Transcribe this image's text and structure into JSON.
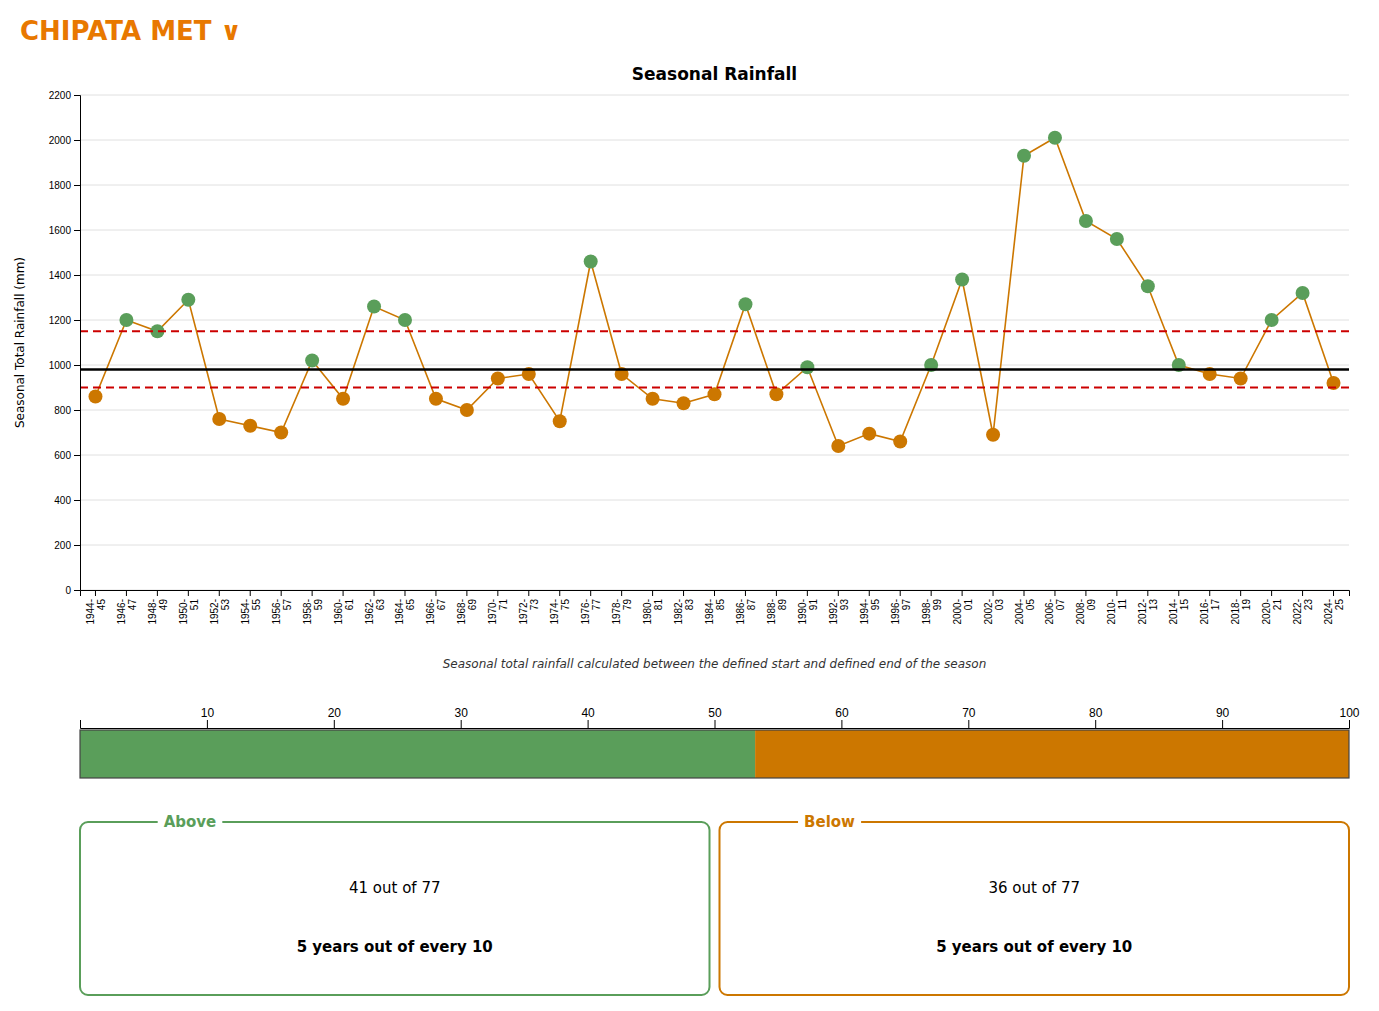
{
  "chart_data": [
    {
      "type": "line",
      "title": "Seasonal Rainfall",
      "subtitle": "Seasonal total rainfall calculated between the defined start and defined end of the season",
      "ylabel": "Seasonal Total Rainfall (mm)",
      "categories": [
        "1944-\n45",
        "1946-\n47",
        "1948-\n49",
        "1950-\n51",
        "1952-\n53",
        "1954-\n55",
        "1956-\n57",
        "1958-\n59",
        "1960-\n61",
        "1962-\n63",
        "1964-\n65",
        "1966-\n67",
        "1968-\n69",
        "1970-\n71",
        "1972-\n73",
        "1974-\n75",
        "1976-\n77",
        "1978-\n79",
        "1980-\n81",
        "1982-\n83",
        "1984-\n85",
        "1986-\n87",
        "1988-\n89",
        "1990-\n91",
        "1992-\n93",
        "1994-\n95",
        "1996-\n97",
        "1998-\n99",
        "2000-\n01",
        "2002-\n03",
        "2004-\n05",
        "2006-\n07",
        "2008-\n09",
        "2010-\n11",
        "2012-\n13",
        "2014-\n15",
        "2016-\n17",
        "2018-\n19",
        "2020-\n21",
        "2022-\n23",
        "2024-\n25"
      ],
      "values": [
        860,
        1200,
        1150,
        1290,
        760,
        730,
        700,
        1020,
        850,
        1260,
        1200,
        850,
        800,
        940,
        960,
        750,
        1460,
        960,
        850,
        830,
        870,
        1270,
        870,
        990,
        640,
        695,
        660,
        1000,
        1380,
        690,
        1930,
        2010,
        1640,
        1560,
        1350,
        1000,
        960,
        940,
        1200,
        1320,
        920
      ],
      "color": "#CC7700",
      "colors": [
        "#CC7700",
        "#5a9e5a",
        "#5a9e5a",
        "#5a9e5a",
        "#CC7700",
        "#CC7700",
        "#CC7700",
        "#5a9e5a",
        "#CC7700",
        "#5a9e5a",
        "#5a9e5a",
        "#CC7700",
        "#CC7700",
        "#CC7700",
        "#CC7700",
        "#CC7700",
        "#5a9e5a",
        "#CC7700",
        "#CC7700",
        "#CC7700",
        "#CC7700",
        "#5a9e5a",
        "#CC7700",
        "#5a9e5a",
        "#CC7700",
        "#CC7700",
        "#CC7700",
        "#5a9e5a",
        "#5a9e5a",
        "#CC7700",
        "#5a9e5a",
        "#5a9e5a",
        "#5a9e5a",
        "#5a9e5a",
        "#5a9e5a",
        "#5a9e5a",
        "#CC7700",
        "#CC7700",
        "#5a9e5a",
        "#5a9e5a",
        "#CC7700"
      ],
      "marker": "circle",
      "ylim": [
        0,
        2200
      ],
      "yticks": [
        0,
        200,
        400,
        600,
        800,
        1000,
        1200,
        1400,
        1600,
        1800,
        2000,
        2200
      ],
      "grid": true,
      "annotations": [
        {
          "type": "header",
          "text": "CHIPATA MET  ∨",
          "color": "#E87800"
        },
        {
          "type": "hline",
          "value": 980,
          "color": "#000000",
          "line_style": "solid"
        },
        {
          "type": "hline",
          "value": 1150,
          "color": "#CC0000",
          "line_style": "dashed"
        },
        {
          "type": "hline",
          "value": 900,
          "color": "#CC0000",
          "line_style": "dashed"
        }
      ]
    },
    {
      "type": "bar",
      "orientation": "horizontal",
      "stacked": true,
      "xlim": [
        0,
        100
      ],
      "xticks": [
        10,
        20,
        30,
        40,
        50,
        60,
        70,
        80,
        90,
        100
      ],
      "series": [
        {
          "name": "Above",
          "color": "#5a9e5a",
          "values": [
            53.2
          ]
        },
        {
          "name": "Below",
          "color": "#CC7700",
          "values": [
            46.8
          ]
        }
      ],
      "annotations": [
        {
          "series": "Above",
          "text": "41 out of 77"
        },
        {
          "series": "Above",
          "text": "5 years out of every 10"
        },
        {
          "series": "Below",
          "text": "36 out of 77"
        },
        {
          "series": "Below",
          "text": "5 years out of every 10"
        }
      ]
    }
  ]
}
